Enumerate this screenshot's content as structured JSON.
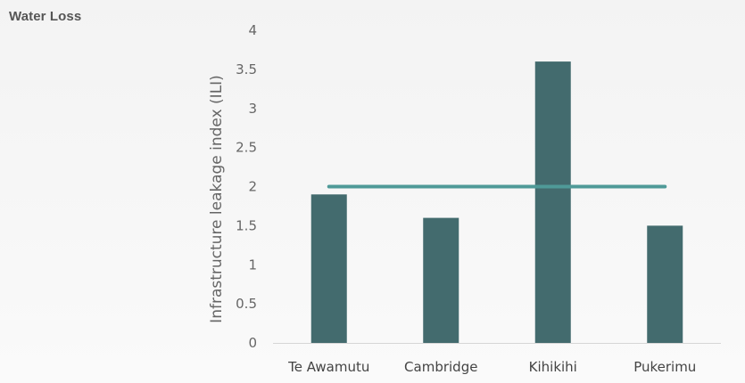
{
  "card": {
    "title": "Water Loss"
  },
  "chart_data": {
    "type": "bar",
    "categories": [
      "Te Awamutu",
      "Cambridge",
      "Kihikihi",
      "Pukerimu"
    ],
    "series": [
      {
        "type": "bar",
        "values": [
          1.9,
          1.6,
          3.6,
          1.5
        ],
        "color": "#436b6e"
      },
      {
        "type": "line",
        "values": [
          2,
          2,
          2,
          2
        ],
        "color": "#4f9a98"
      }
    ],
    "ylabel": "Infrastructure leakage index (ILI)",
    "xlabel": "",
    "ylim": [
      0,
      4
    ],
    "yticks": [
      0,
      0.5,
      1,
      1.5,
      2,
      2.5,
      3,
      3.5,
      4
    ],
    "ytick_labels": [
      "0",
      "0.5",
      "1",
      "1.5",
      "2",
      "2.5",
      "3",
      "3.5",
      "4"
    ],
    "grid": false,
    "legend": "none"
  }
}
